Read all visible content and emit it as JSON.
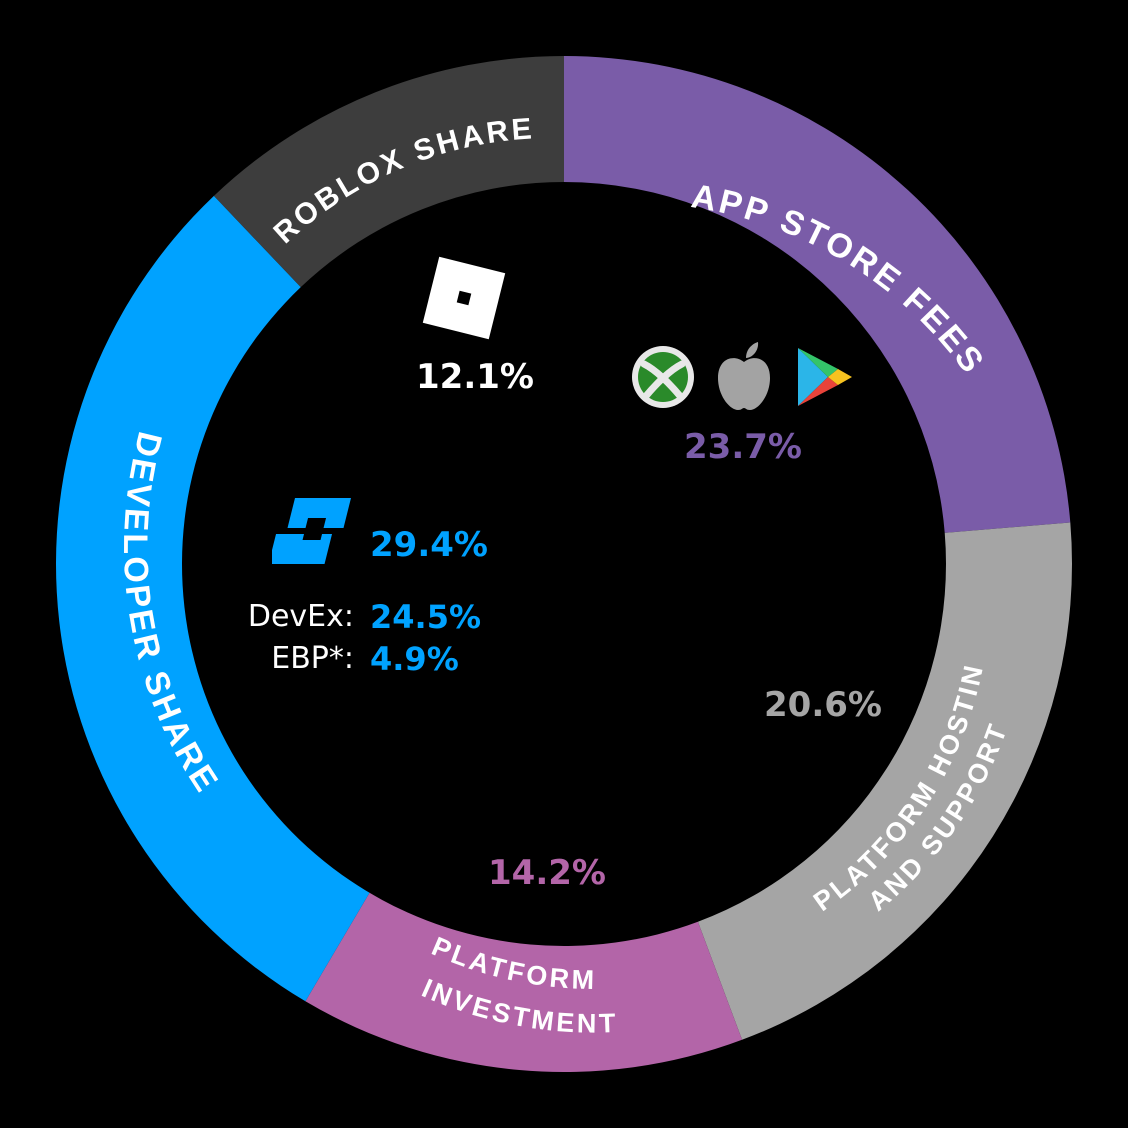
{
  "chart_data": {
    "type": "pie",
    "donut": true,
    "slices": [
      {
        "label": "APP STORE FEES",
        "value": 23.7,
        "display": "23.7%",
        "color": "#7a5ca8",
        "label_color": "#7a5ca8"
      },
      {
        "label": "PLATFORM HOSTING AND SUPPORT",
        "value": 20.6,
        "display": "20.6%",
        "color": "#a5a5a5",
        "label_color": "#a5a5a5"
      },
      {
        "label": "PLATFORM INVESTMENT",
        "value": 14.2,
        "display": "14.2%",
        "color": "#b365a8",
        "label_color": "#b365a8"
      },
      {
        "label": "DEVELOPER SHARE",
        "value": 29.4,
        "display": "29.4%",
        "color": "#00a2ff",
        "label_color": "#00a2ff",
        "breakdown": [
          {
            "label": "DevEx:",
            "value": 24.5,
            "display": "24.5%"
          },
          {
            "label": "EBP*:",
            "value": 4.9,
            "display": "4.9%"
          }
        ]
      },
      {
        "label": "ROBLOX SHARE",
        "value": 12.1,
        "display": "12.1%",
        "color": "#3d3d3d",
        "label_color": "#ffffff"
      }
    ],
    "ring_labels": {
      "app_store": "APP STORE FEES",
      "hosting_line1": "PLATFORM HOSTING",
      "hosting_line2": "AND SUPPORT",
      "investment_line1": "PLATFORM",
      "investment_line2": "INVESTMENT",
      "developer": "DEVELOPER SHARE",
      "roblox": "ROBLOX SHARE"
    }
  },
  "icons": [
    "roblox-logo-icon",
    "xbox-icon",
    "apple-icon",
    "google-play-icon",
    "roblox-studio-icon"
  ]
}
